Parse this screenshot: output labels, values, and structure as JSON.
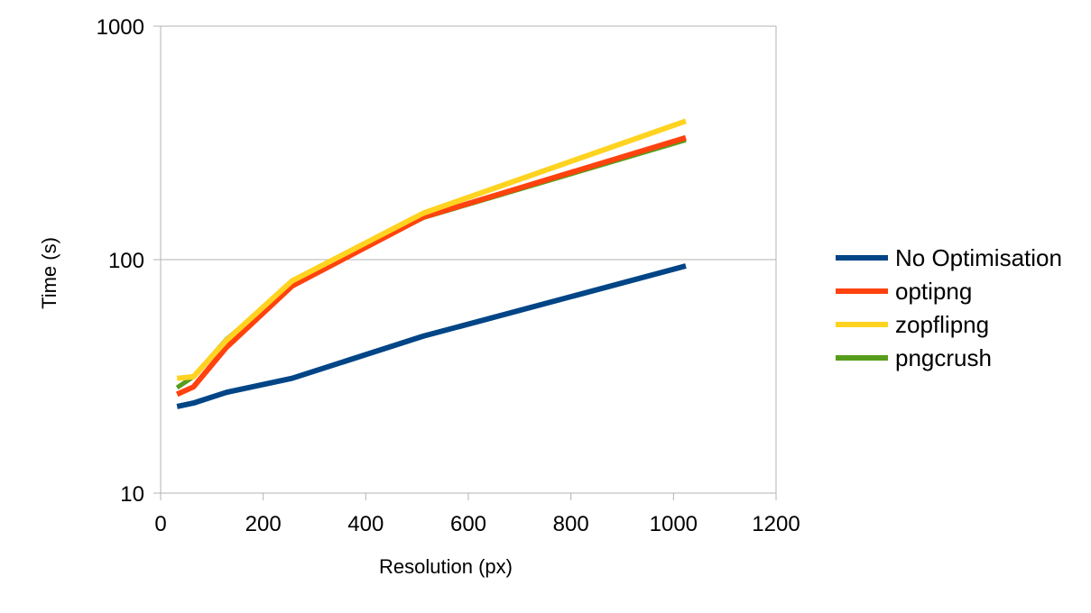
{
  "chart_data": {
    "type": "line",
    "title": "",
    "xlabel": "Resolution (px)",
    "ylabel": "Time (s)",
    "xlim": [
      0,
      1200
    ],
    "ylim": [
      10,
      1000
    ],
    "y_scale": "log",
    "x_ticks": [
      0,
      200,
      400,
      600,
      800,
      1000,
      1200
    ],
    "y_ticks": [
      10,
      100,
      1000
    ],
    "x_tick_labels": [
      "0",
      "200",
      "400",
      "600",
      "800",
      "1000",
      "1200"
    ],
    "y_tick_labels": [
      "10",
      "100",
      "1000"
    ],
    "grid": "horizontal major",
    "legend_position": "right",
    "x": [
      32,
      64,
      128,
      256,
      512,
      1024
    ],
    "series": [
      {
        "name": "No Optimisation",
        "color": "#004586",
        "values": [
          23.5,
          24.3,
          27,
          31,
          47,
          94
        ]
      },
      {
        "name": "optipng",
        "color": "#ff420e",
        "values": [
          26.5,
          28.5,
          42,
          77,
          152,
          333
        ]
      },
      {
        "name": "zopflipng",
        "color": "#ffd320",
        "values": [
          31,
          31.5,
          45,
          81,
          158,
          392
        ]
      },
      {
        "name": "pngcrush",
        "color": "#579d1c",
        "values": [
          28.3,
          31.5,
          45.5,
          79,
          151,
          325
        ]
      }
    ]
  }
}
